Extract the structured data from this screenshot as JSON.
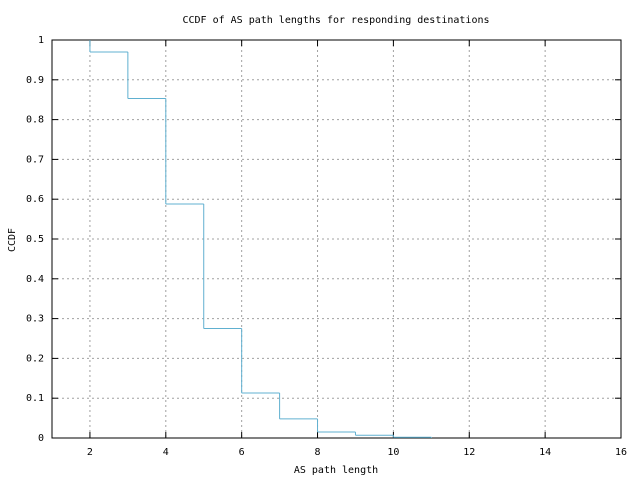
{
  "chart_data": {
    "type": "step",
    "title": "CCDF of AS path lengths for responding destinations",
    "x_label": "AS path length",
    "y_label": "CCDF",
    "x": [
      2,
      2,
      3,
      4,
      5,
      6,
      7,
      8,
      9,
      10,
      11
    ],
    "values": [
      1,
      0.97,
      0.853,
      0.588,
      0.275,
      0.113,
      0.048,
      0.015,
      0.007,
      0.002,
      0
    ],
    "color": "#60b0d0",
    "xlim": [
      1,
      16
    ],
    "xticks": [
      2,
      4,
      6,
      8,
      10,
      12,
      14,
      16
    ],
    "ylim": [
      0,
      1
    ],
    "yticks": [
      0,
      0.1,
      0.2,
      0.3,
      0.4,
      0.5,
      0.6,
      0.7,
      0.8,
      0.9,
      1
    ],
    "grid": true
  }
}
